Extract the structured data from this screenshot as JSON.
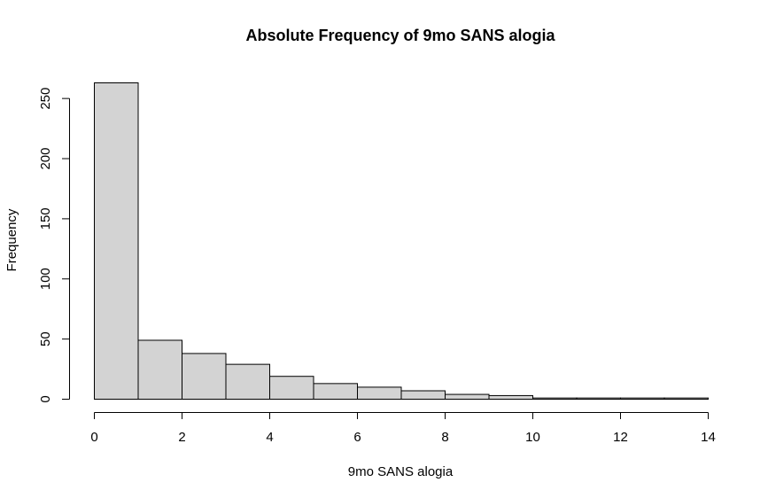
{
  "chart_data": {
    "type": "bar",
    "title": "Absolute Frequency of 9mo SANS alogia",
    "xlabel": "9mo SANS alogia",
    "ylabel": "Frequency",
    "bins": [
      {
        "x0": 0,
        "x1": 1,
        "count": 263
      },
      {
        "x0": 1,
        "x1": 2,
        "count": 49
      },
      {
        "x0": 2,
        "x1": 3,
        "count": 38
      },
      {
        "x0": 3,
        "x1": 4,
        "count": 29
      },
      {
        "x0": 4,
        "x1": 5,
        "count": 19
      },
      {
        "x0": 5,
        "x1": 6,
        "count": 13
      },
      {
        "x0": 6,
        "x1": 7,
        "count": 10
      },
      {
        "x0": 7,
        "x1": 8,
        "count": 7
      },
      {
        "x0": 8,
        "x1": 9,
        "count": 4
      },
      {
        "x0": 9,
        "x1": 10,
        "count": 3
      },
      {
        "x0": 10,
        "x1": 11,
        "count": 1
      },
      {
        "x0": 11,
        "x1": 12,
        "count": 1
      },
      {
        "x0": 12,
        "x1": 13,
        "count": 1
      },
      {
        "x0": 13,
        "x1": 14,
        "count": 1
      }
    ],
    "xlim": [
      0,
      14
    ],
    "ylim": [
      0,
      263
    ],
    "xticks": [
      0,
      2,
      4,
      6,
      8,
      10,
      12,
      14
    ],
    "yticks": [
      0,
      50,
      100,
      150,
      200,
      250
    ],
    "bar_color": "#d3d3d3",
    "grid": false
  }
}
